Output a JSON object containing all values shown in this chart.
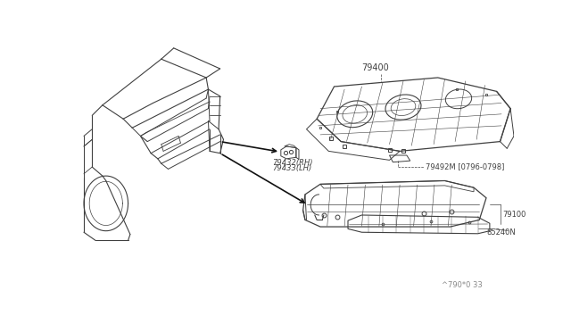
{
  "bg_color": "#ffffff",
  "line_color": "#404040",
  "text_color": "#404040",
  "watermark": "^790*0 33",
  "label_79400": "79400",
  "label_79432": "79432(RH)",
  "label_79433": "79433(LH)",
  "label_79492M": "79492M [0796-0798]",
  "label_79100": "79100",
  "label_85240N": "85240N"
}
